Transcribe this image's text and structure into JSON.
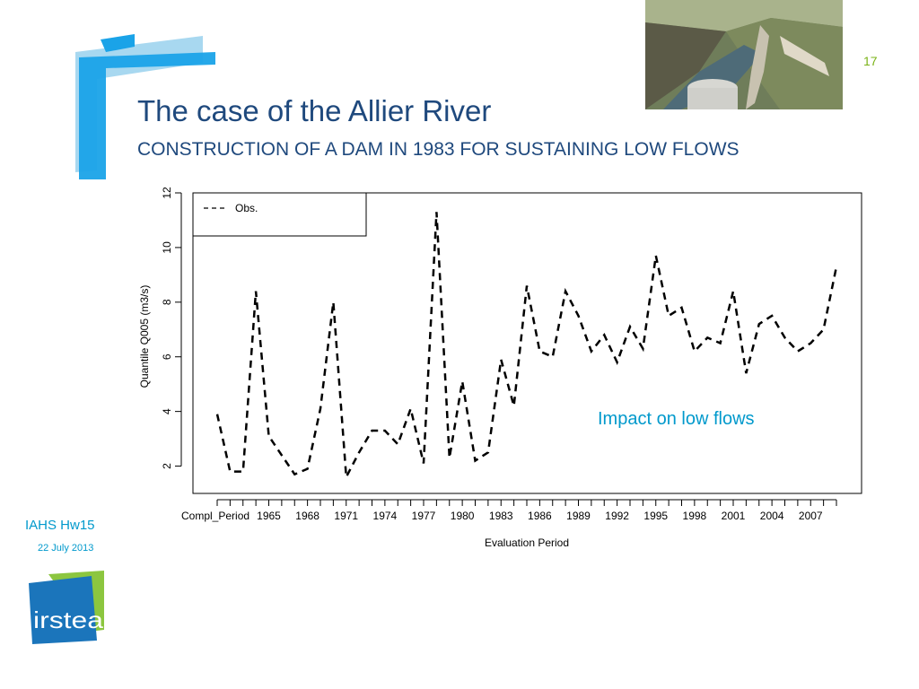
{
  "slide": {
    "number": "17",
    "title": "The case of the Allier River",
    "subtitle": "CONSTRUCTION OF A DAM IN 1983 FOR SUSTAINING LOW FLOWS",
    "annotation": "Impact on low flows",
    "footer_title": "IAHS Hw15",
    "footer_date": "22 July 2013",
    "logo_text": "irstea"
  },
  "colors": {
    "title": "#1f497d",
    "accent_cyan": "#0099cc",
    "accent_green": "#7ab317",
    "bracket_blue": "#1aa3e8",
    "bracket_light": "#a8d8f0",
    "logo_blue": "#1b75bb",
    "logo_green": "#8cc63f"
  },
  "icons": {
    "photo": "dam-landscape-photo",
    "logo": "irstea-logo",
    "decoration": "corner-bracket"
  },
  "chart_data": {
    "type": "line",
    "xlabel": "Evaluation Period",
    "ylabel": "Quantile Q005 (m3/s)",
    "ylim": [
      1,
      12
    ],
    "yticks": [
      2,
      4,
      6,
      8,
      10,
      12
    ],
    "x_tick_labels": [
      "Compl_Period",
      "1965",
      "1968",
      "1971",
      "1974",
      "1977",
      "1980",
      "1983",
      "1986",
      "1989",
      "1992",
      "1995",
      "1998",
      "2001",
      "2004",
      "2007"
    ],
    "legend_position": "top-left",
    "series": [
      {
        "name": "Obs.",
        "style": "dashed",
        "color": "#000000",
        "values": [
          3.9,
          1.8,
          1.8,
          8.4,
          3.1,
          2.4,
          1.7,
          1.9,
          4.1,
          8.0,
          1.6,
          2.5,
          3.3,
          3.3,
          2.8,
          4.1,
          2.1,
          11.3,
          2.3,
          5.1,
          2.2,
          2.5,
          5.9,
          4.2,
          8.6,
          6.2,
          6.0,
          8.4,
          7.5,
          6.2,
          6.8,
          5.8,
          7.1,
          6.3,
          9.7,
          7.5,
          7.8,
          6.2,
          6.7,
          6.5,
          8.4,
          5.4,
          7.2,
          7.5,
          6.7,
          6.2,
          6.5,
          7.0,
          9.3
        ]
      }
    ]
  }
}
